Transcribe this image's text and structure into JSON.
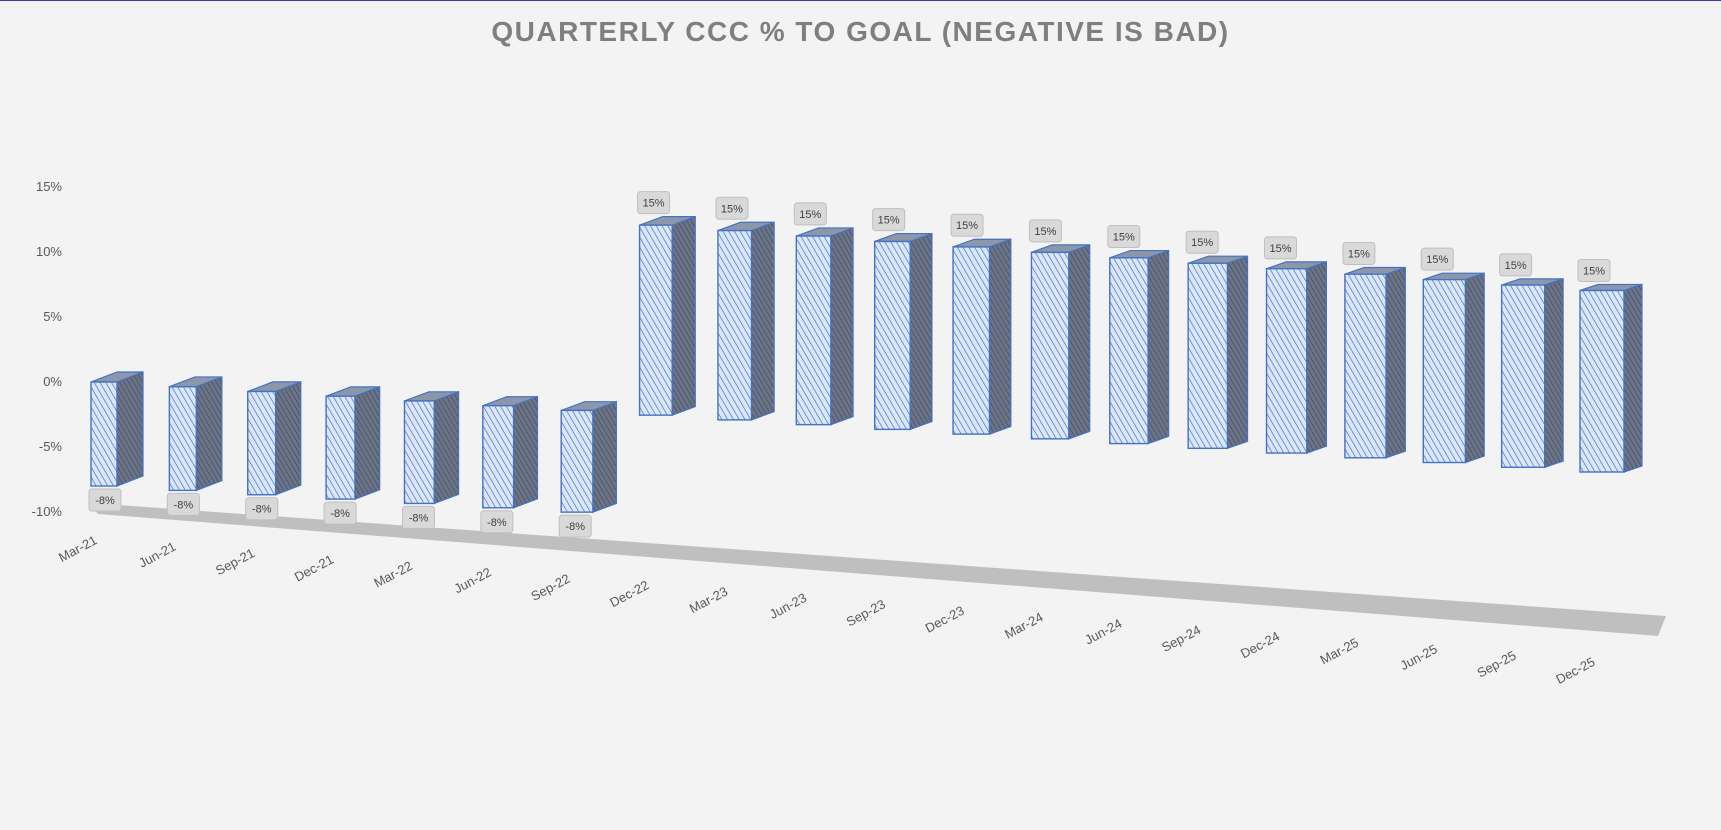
{
  "chart_data": {
    "type": "bar",
    "title": "QUARTERLY CCC % TO GOAL (NEGATIVE IS BAD)",
    "categories": [
      "Mar-21",
      "Jun-21",
      "Sep-21",
      "Dec-21",
      "Mar-22",
      "Jun-22",
      "Sep-22",
      "Dec-22",
      "Mar-23",
      "Jun-23",
      "Sep-23",
      "Dec-23",
      "Mar-24",
      "Jun-24",
      "Sep-24",
      "Dec-24",
      "Mar-25",
      "Jun-25",
      "Sep-25",
      "Dec-25"
    ],
    "series": [
      {
        "values": [
          -8,
          -8,
          -8,
          -8,
          -8,
          -8,
          -8,
          15,
          15,
          15,
          15,
          15,
          15,
          15,
          15,
          15,
          15,
          15,
          15,
          15
        ],
        "data_labels": [
          "-8%",
          "-8%",
          "-8%",
          "-8%",
          "-8%",
          "-8%",
          "-8%",
          "15%",
          "15%",
          "15%",
          "15%",
          "15%",
          "15%",
          "15%",
          "15%",
          "15%",
          "15%",
          "15%",
          "15%",
          "15%"
        ]
      }
    ],
    "y_ticks": [
      "15%",
      "10%",
      "5%",
      "0%",
      "-5%",
      "-10%"
    ],
    "y_tick_values": [
      15,
      10,
      5,
      0,
      -5,
      -10
    ],
    "ylim": [
      -10,
      15
    ],
    "xlabel": "",
    "ylabel": "",
    "grid": false,
    "legend": "none",
    "style": "3d-column",
    "colors": {
      "bar_front": "#dbe6f8",
      "bar_hatch": "#4472c4",
      "bar_side": "#5f6778",
      "bar_top": "#8d97aa",
      "bar_edge": "#4472c4",
      "floor": "#bfbfbf",
      "label_box": "#d9d9d9",
      "title": "#7f7f7f",
      "axis_text": "#595959"
    }
  }
}
